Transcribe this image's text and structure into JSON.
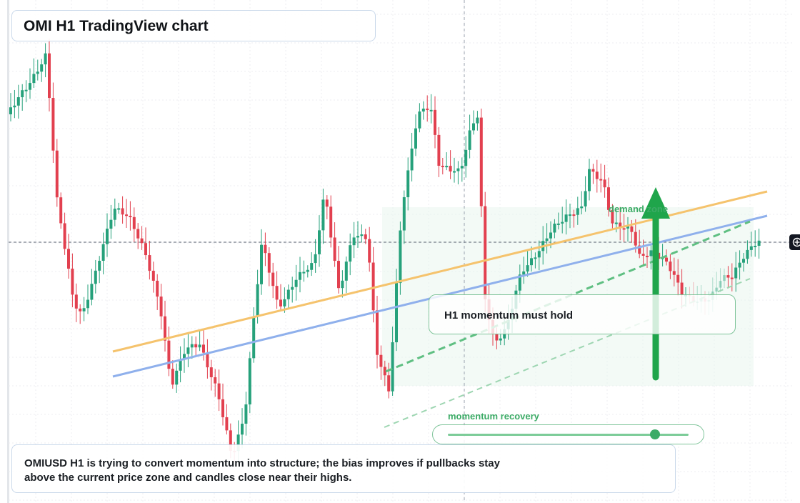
{
  "title": "OMI H1 TradingView chart",
  "zone_label": "demand zone",
  "momentum_note": "H1 momentum must hold",
  "recovery_label": "momentum recovery",
  "recovery_level": 0.86,
  "summary": "OMIUSD H1 is trying to convert momentum into structure; the bias improves if pullbacks stay above the current price zone and candles close near their highs.",
  "icons": {
    "crosshair": "crosshair-icon",
    "arrow": "up-arrow-icon"
  },
  "colors": {
    "up": "#26a17b",
    "down": "#e2404f",
    "orange_line": "#f5c36d",
    "blue_line": "#8fb0ec",
    "zone": "#3cab66"
  },
  "chart_data": {
    "type": "candlestick",
    "symbol": "OMIUSD",
    "timeframe": "H1",
    "lines": [
      "orange-trendline",
      "blue-trendline",
      "green-dashed-trendline"
    ],
    "signal": "up-arrow"
  }
}
